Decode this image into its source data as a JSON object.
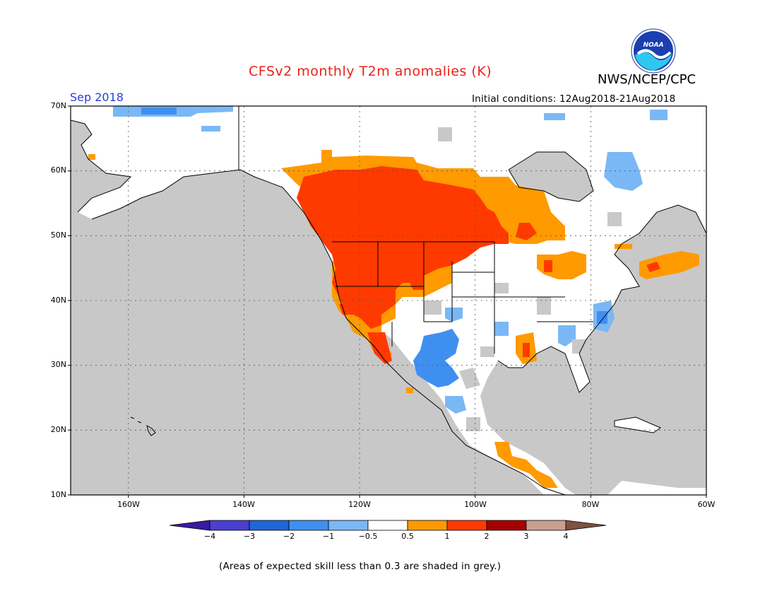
{
  "title": "CFSv2 monthly T2m anomalies (K)",
  "agency": "NWS/NCEP/CPC",
  "logo_text": "NOAA",
  "valid_month": "Sep 2018",
  "initial_conditions": "Initial conditions: 12Aug2018-21Aug2018",
  "footnote": "(Areas of expected skill less than 0.3 are shaded in grey.)",
  "lat_labels": [
    "70N",
    "60N",
    "50N",
    "40N",
    "30N",
    "20N",
    "10N"
  ],
  "lon_labels": [
    "160W",
    "140W",
    "120W",
    "100W",
    "80W",
    "60W"
  ],
  "colorbar": {
    "labels": [
      "−4",
      "−3",
      "−2",
      "−1",
      "−0.5",
      "0.5",
      "1",
      "2",
      "3",
      "4"
    ],
    "colors": [
      "#3a1aa0",
      "#4a3fcf",
      "#1f66d6",
      "#3f8ff0",
      "#7ab8f5",
      "#ffffff",
      "#ff9a00",
      "#ff3a00",
      "#a50000",
      "#c8a090",
      "#805040"
    ]
  },
  "colors": {
    "grey_low_skill": "#c8c8c8",
    "warm_0_5_1": "#ff9a00",
    "warm_1_2": "#ff3a00",
    "cool_05_1": "#7ab8f5",
    "cool_1_2": "#3f8ff0",
    "title_red": "#e8231b",
    "month_blue": "#2a3fd8"
  },
  "map": {
    "lon_range": [
      -170,
      -60
    ],
    "lat_range": [
      10,
      70
    ],
    "grid": true
  }
}
